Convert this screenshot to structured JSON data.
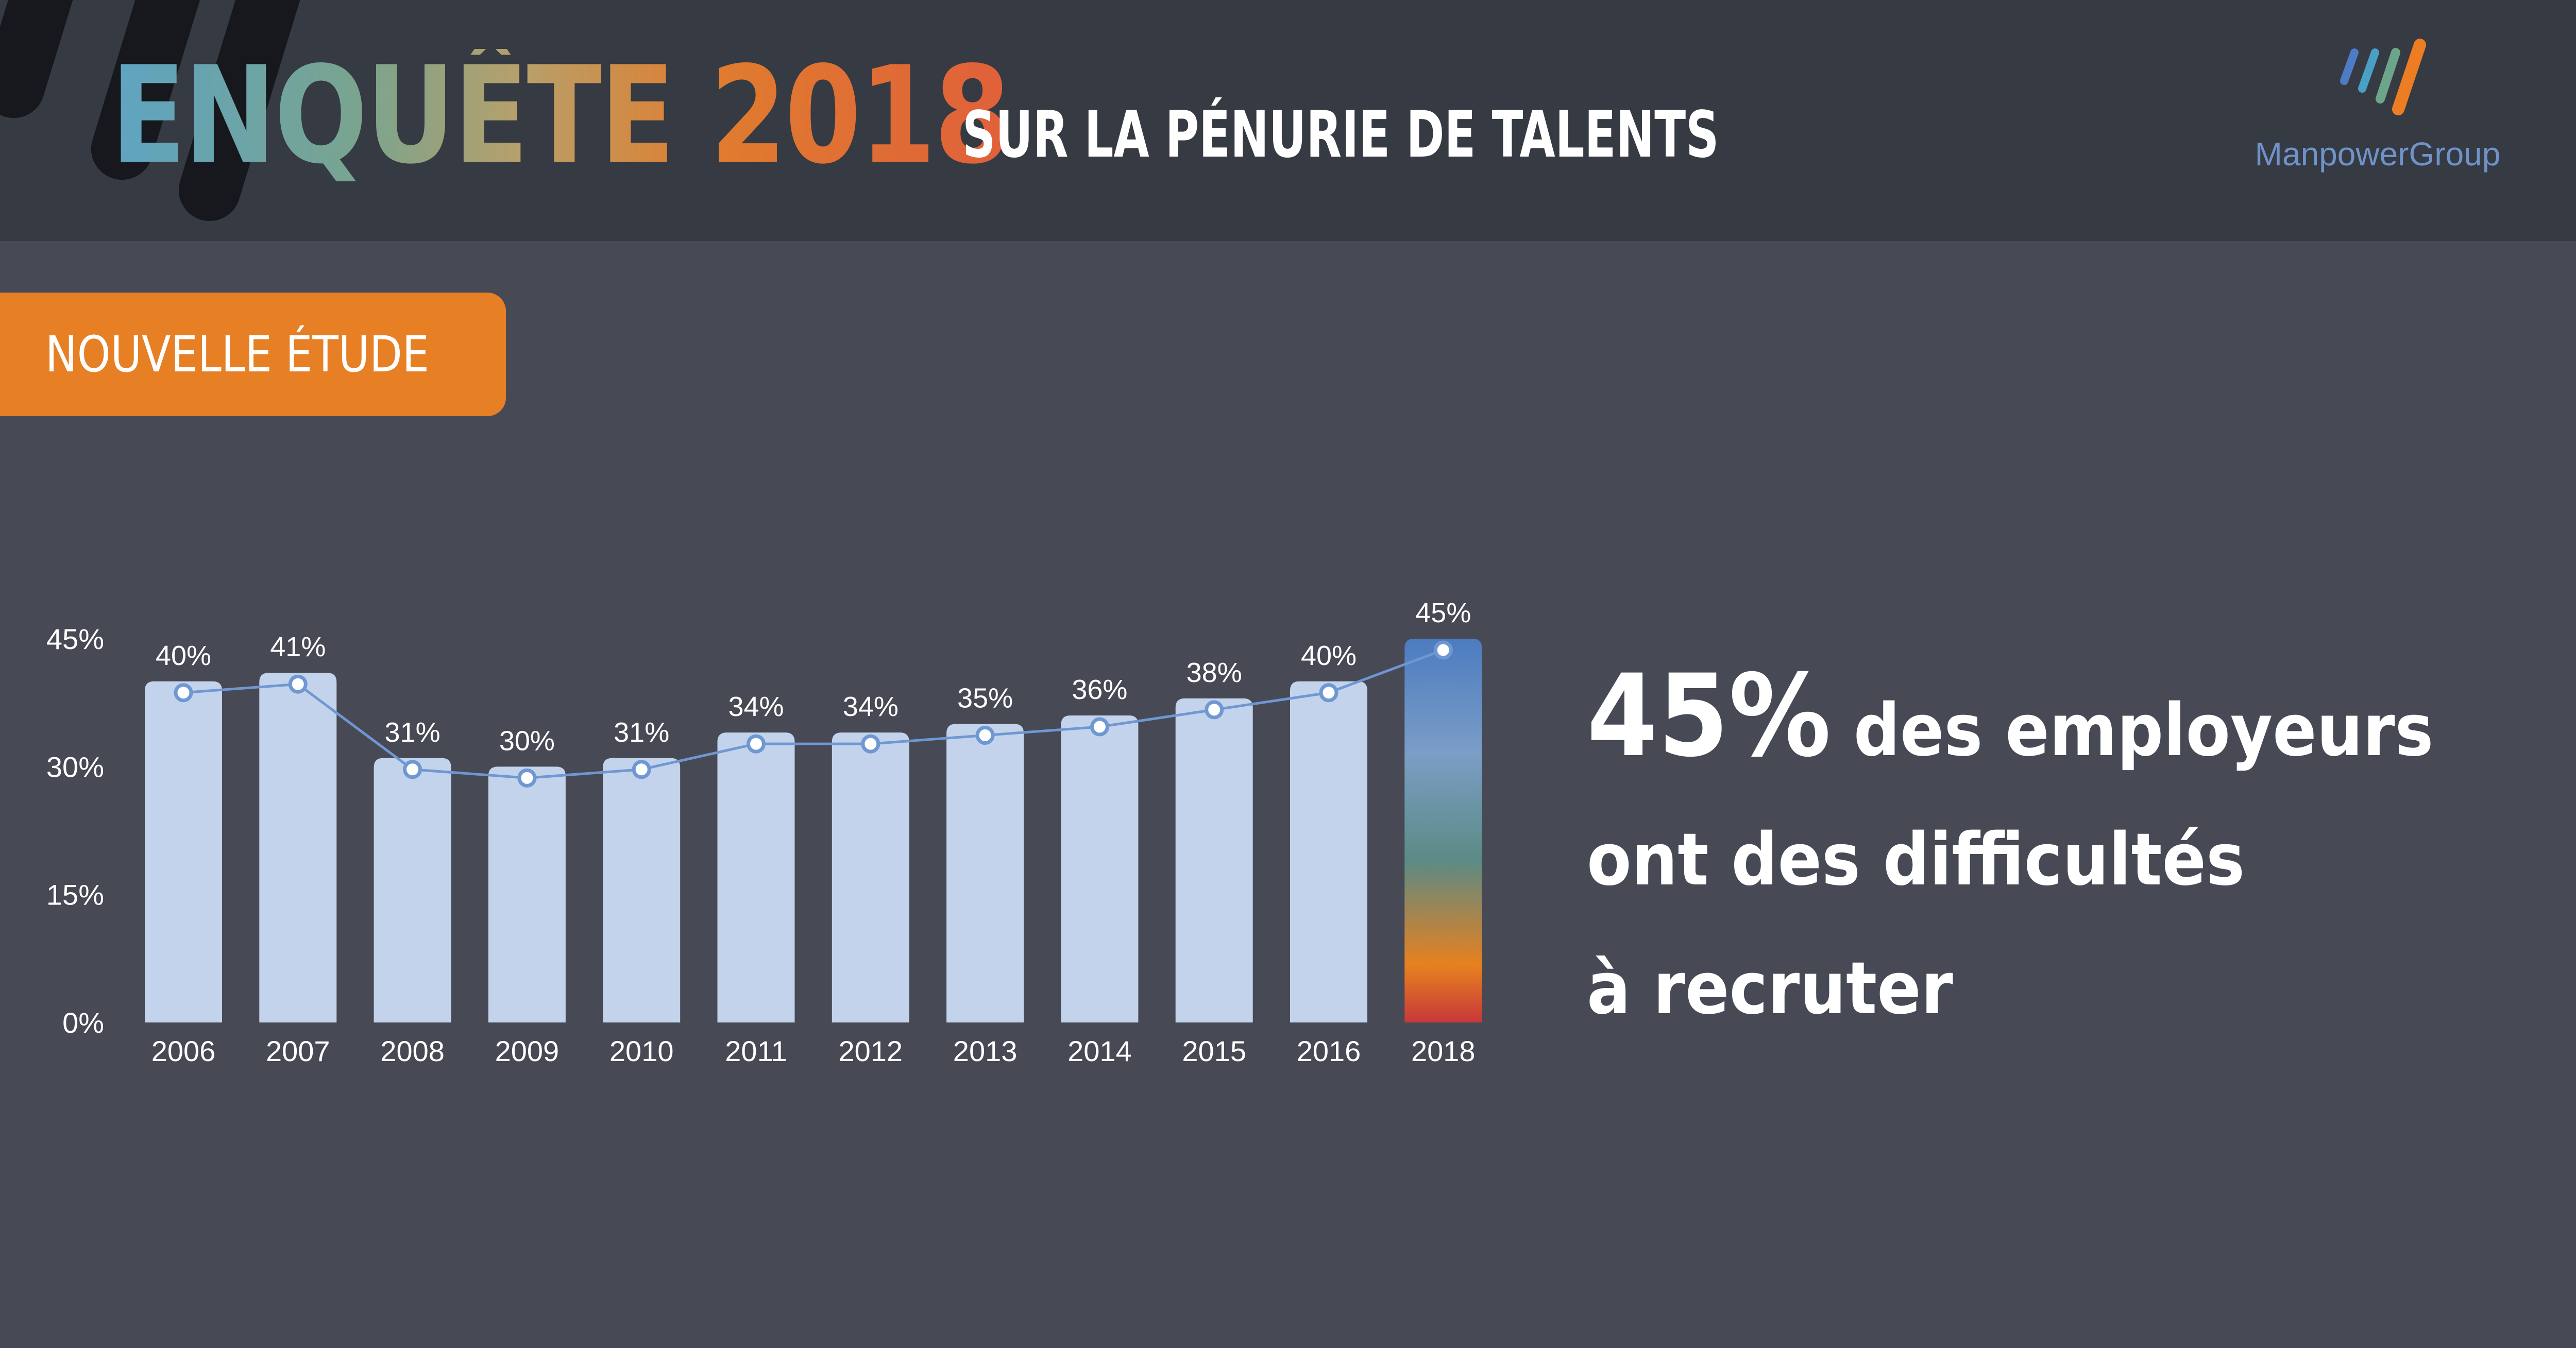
{
  "header": {
    "title_main": "ENQUÊTE 2018",
    "title_sub": "SUR LA PÉNURIE DE TALENTS",
    "logo_text": "ManpowerGroup",
    "logo_icon": "manpowergroup-logo-icon",
    "colors": {
      "background": "#363a42",
      "gradient": [
        "#5ea4c2",
        "#7aa48e",
        "#b8a06a",
        "#e07d2e",
        "#e0603a"
      ]
    }
  },
  "badge": {
    "label": "NOUVELLE ÉTUDE",
    "color": "#e77f24"
  },
  "chart_data": {
    "type": "bar",
    "categories": [
      "2006",
      "2007",
      "2008",
      "2009",
      "2010",
      "2011",
      "2012",
      "2013",
      "2014",
      "2015",
      "2016",
      "2018"
    ],
    "values": [
      40,
      41,
      31,
      30,
      31,
      34,
      34,
      35,
      36,
      38,
      40,
      45
    ],
    "value_labels": [
      "40%",
      "41%",
      "31%",
      "30%",
      "31%",
      "34%",
      "34%",
      "35%",
      "36%",
      "38%",
      "40%",
      "45%"
    ],
    "y_ticks": [
      0,
      15,
      30,
      45
    ],
    "y_tick_labels": [
      "0%",
      "15%",
      "30%",
      "45%"
    ],
    "ylim": [
      0,
      45
    ],
    "overlay": "line",
    "grid": false,
    "legend": "none",
    "colors": {
      "bar": "#c3d3eb",
      "highlight_gradient": [
        "#4c7bc0",
        "#7a9ec6",
        "#5c8a84",
        "#e7811f",
        "#c7383a"
      ],
      "line": "#6f97d2"
    }
  },
  "headline": {
    "big": "45%",
    "rest": " des employeurs",
    "line2": "ont des difficultés",
    "line3": "à recruter"
  }
}
